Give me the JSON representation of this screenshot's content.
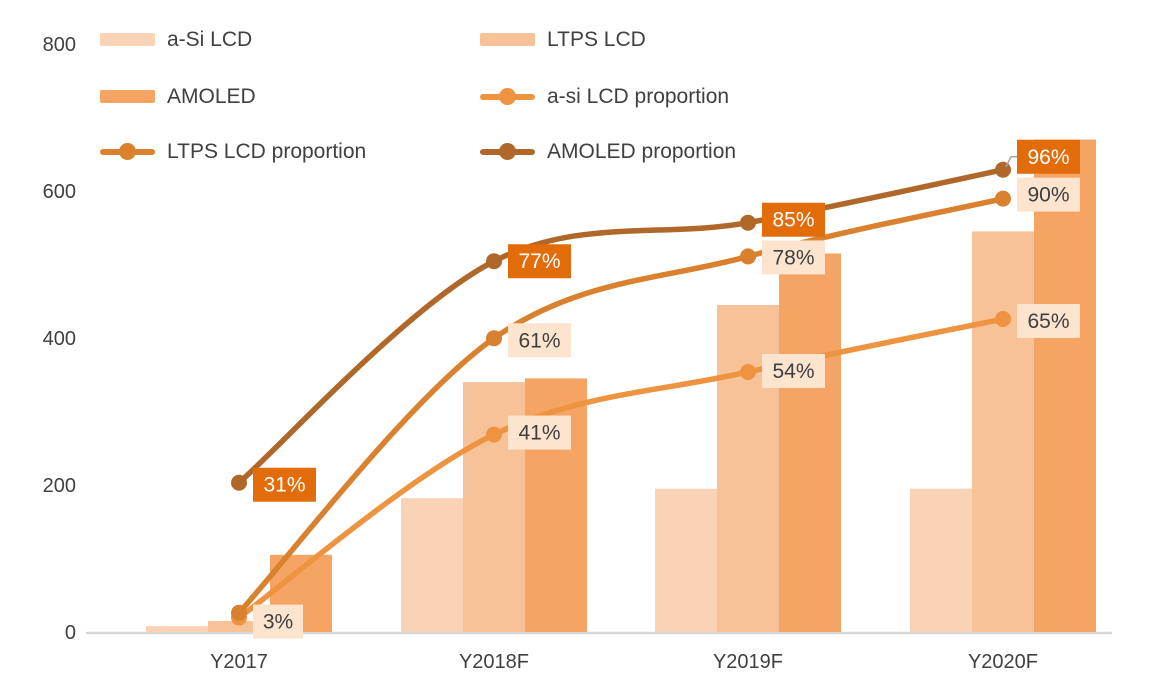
{
  "chart_data": {
    "type": "bar+line",
    "title": "",
    "categories": [
      "Y2017",
      "Y2018F",
      "Y2019F",
      "Y2020F"
    ],
    "bar_series": [
      {
        "name": "a-Si LCD",
        "color": "#FAD2B6",
        "values": [
          8,
          182,
          195,
          195
        ]
      },
      {
        "name": "LTPS LCD",
        "color": "#F8C298",
        "values": [
          15,
          340,
          445,
          545
        ]
      },
      {
        "name": "AMOLED",
        "color": "#F6A463",
        "values": [
          105,
          345,
          515,
          670
        ]
      }
    ],
    "line_series": [
      {
        "name": "a-si LCD proportion",
        "color": "#EE9340",
        "values_pct": [
          3,
          41,
          54,
          65
        ],
        "labels": [
          "3%",
          "41%",
          "54%",
          "65%"
        ],
        "label_show": [
          true,
          true,
          true,
          true
        ],
        "label_dy": [
          4,
          -2,
          -1,
          2
        ],
        "label_leader": [
          false,
          false,
          false,
          false
        ],
        "label_variant": "light"
      },
      {
        "name": "LTPS LCD proportion",
        "color": "#D9812E",
        "values_pct": [
          4,
          61,
          78,
          90
        ],
        "labels": [
          "",
          "61%",
          "78%",
          "90%"
        ],
        "label_show": [
          false,
          true,
          true,
          true
        ],
        "label_dy": [
          0,
          2,
          1,
          -4
        ],
        "label_leader": [
          false,
          false,
          false,
          false
        ],
        "label_variant": "light"
      },
      {
        "name": "AMOLED proportion",
        "color": "#B0682A",
        "values_pct": [
          31,
          77,
          85,
          96
        ],
        "labels": [
          "31%",
          "77%",
          "85%",
          "96%"
        ],
        "label_show": [
          true,
          true,
          true,
          true
        ],
        "label_dy": [
          2,
          0,
          -3,
          -13
        ],
        "label_leader": [
          false,
          false,
          false,
          true
        ],
        "label_variant": "dark"
      }
    ],
    "y_axis": {
      "ticks": [
        0,
        200,
        400,
        600,
        800
      ],
      "min": 0,
      "max": 800,
      "gridlines": false
    },
    "secondary_y_axis": {
      "visible": false
    },
    "legend_position": "top-left"
  },
  "styles": {
    "label_dark_bg": "#E36C0A",
    "label_dark_text": "#FFFFFF",
    "label_light_bg": "#FCE4CF",
    "label_light_text": "#3F3F3F",
    "axis_text": "#404040",
    "baseline": "#D9D9D9",
    "leader": "#A6A6A6"
  }
}
